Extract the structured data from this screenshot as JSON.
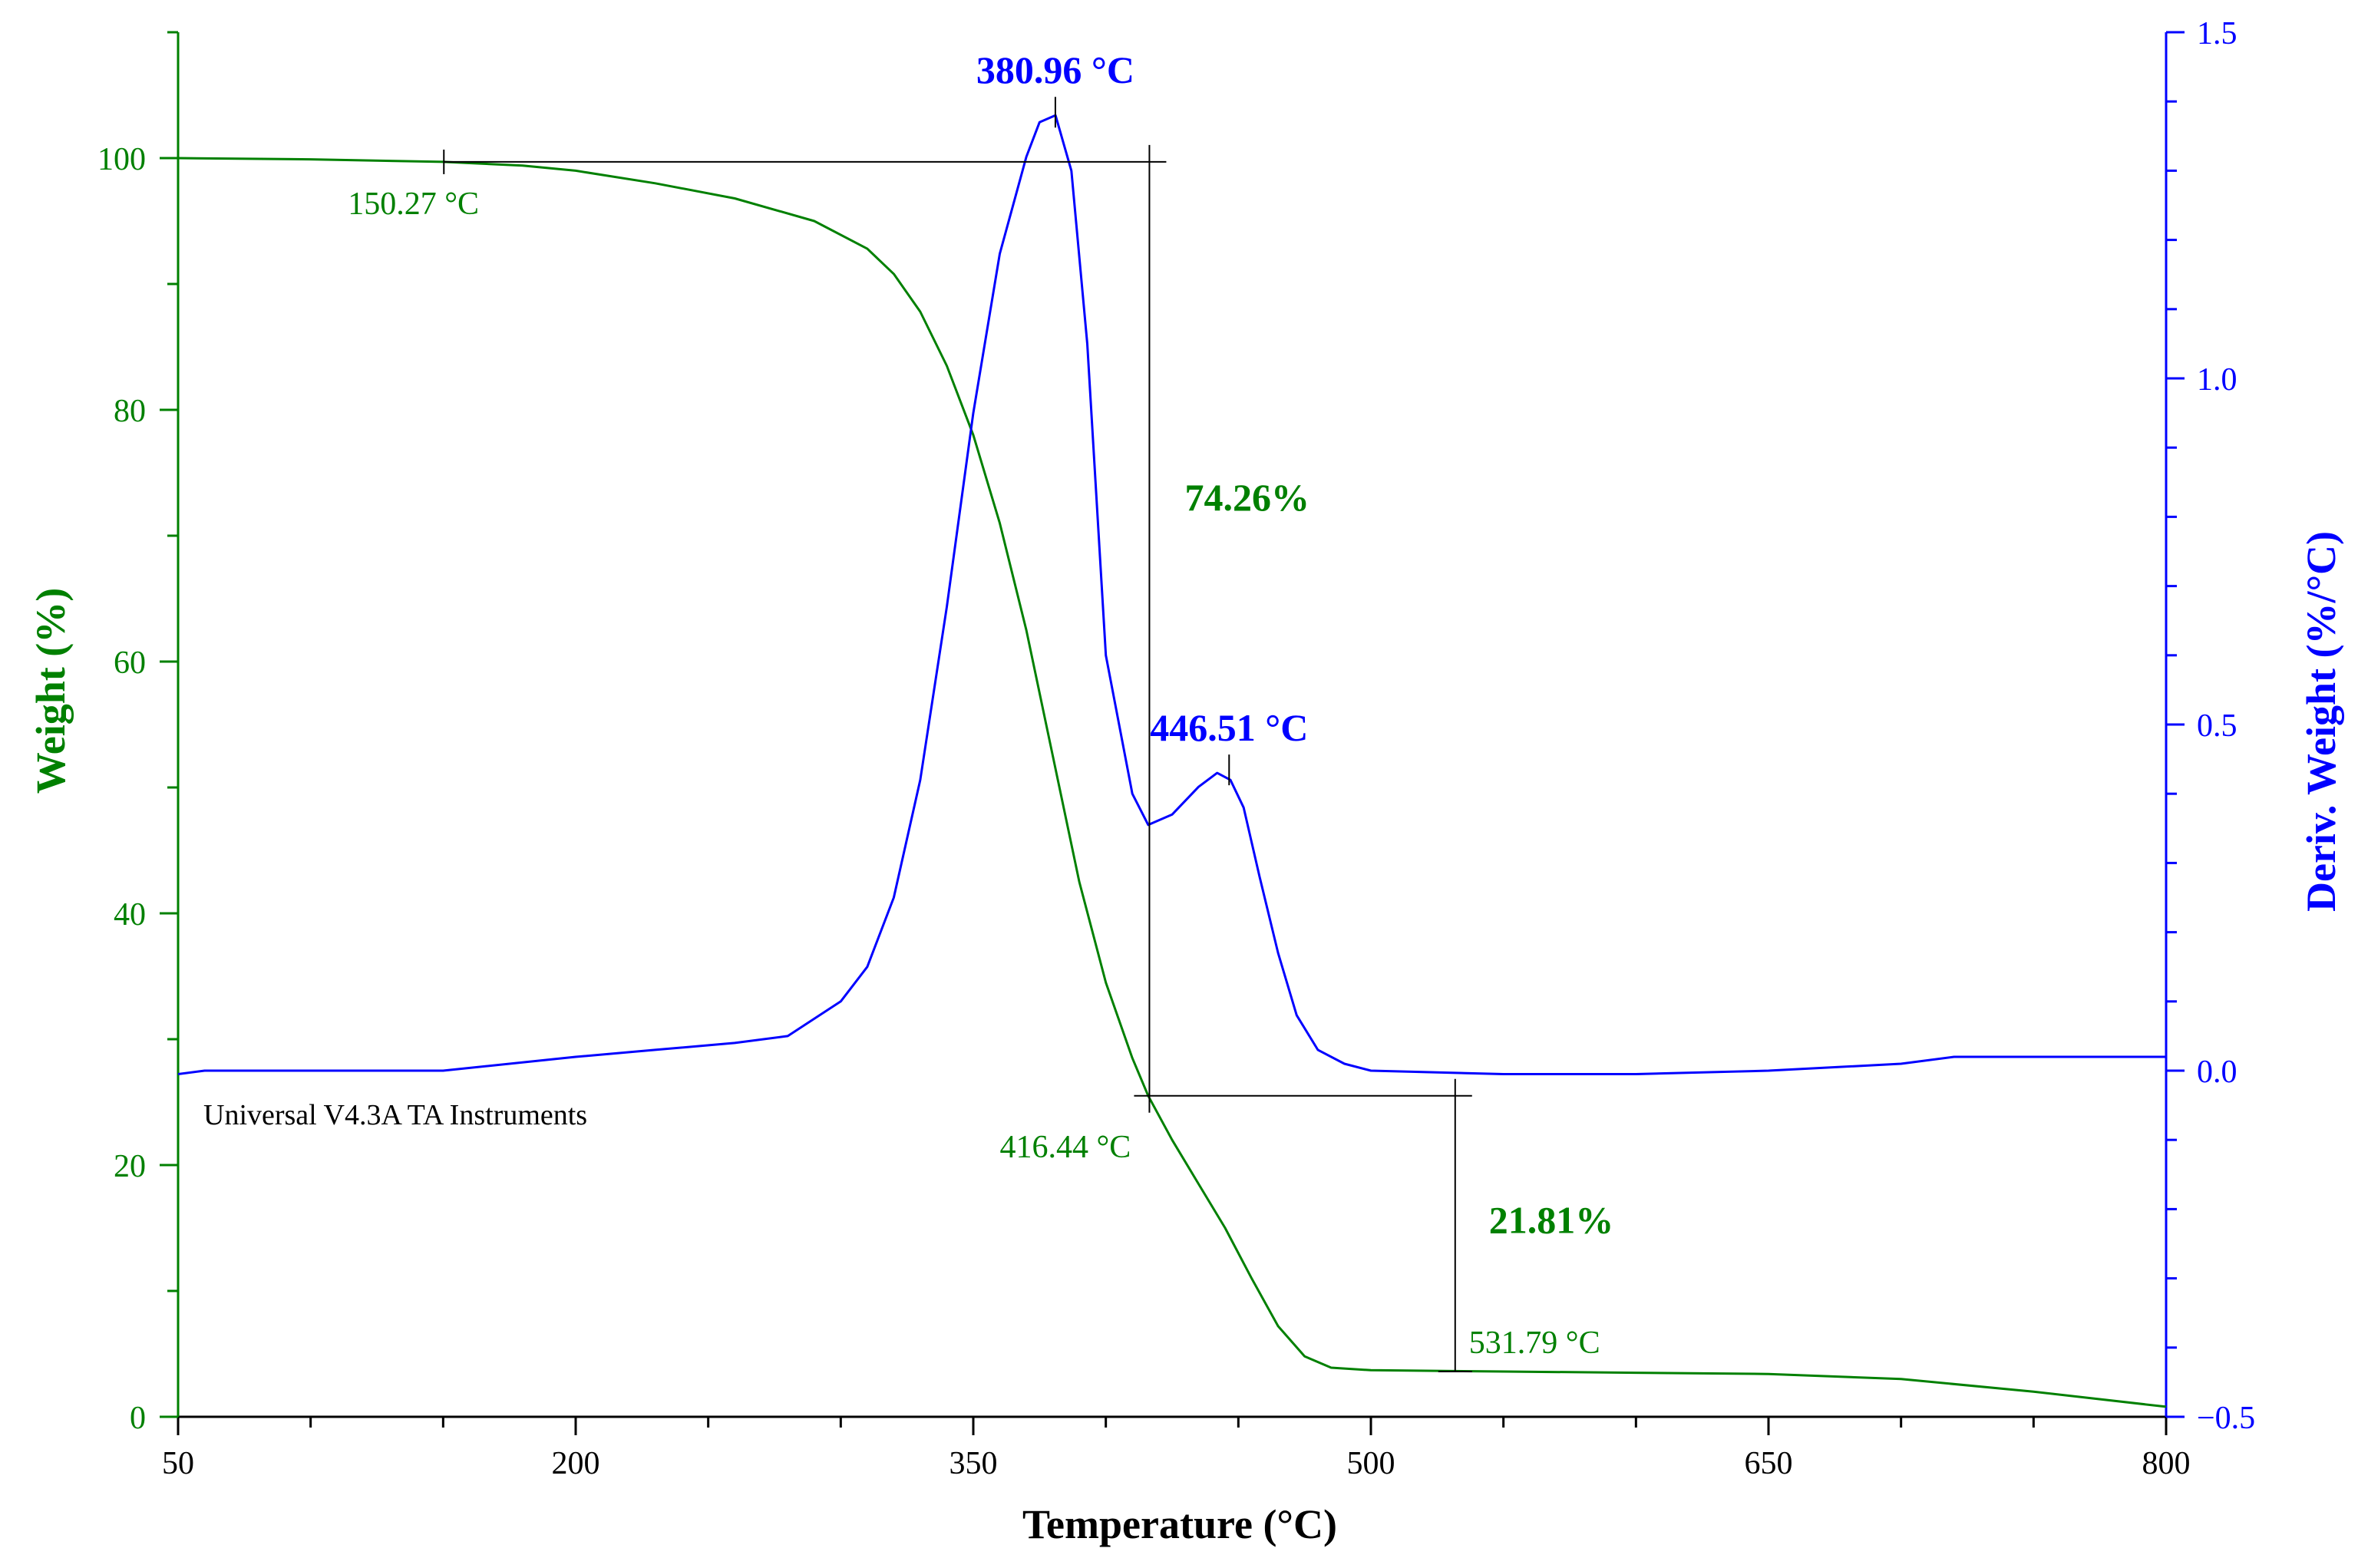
{
  "chart_data": {
    "type": "line",
    "x_axis": {
      "label": "Temperature  (°C)",
      "lim": [
        50,
        800
      ],
      "ticks": [
        50,
        200,
        350,
        500,
        650,
        800
      ],
      "minor_step": 50
    },
    "y_left": {
      "label": "Weight  (%)",
      "lim": [
        0,
        110
      ],
      "ticks": [
        0,
        20,
        40,
        60,
        80,
        100
      ],
      "minor_step": 10
    },
    "y_right": {
      "label": "Deriv.  Weight  (%/°C)",
      "lim": [
        -0.5,
        1.5
      ],
      "ticks": [
        -0.5,
        0.0,
        0.5,
        1.0,
        1.5
      ],
      "tick_labels": [
        "−0.5",
        "0.0",
        "0.5",
        "1.0",
        "1.5"
      ],
      "minor_step": 0.1
    },
    "grid": false,
    "series": [
      {
        "axis": "left",
        "color": "#008000",
        "x": [
          50,
          100,
          150,
          180,
          200,
          230,
          260,
          290,
          310,
          320,
          330,
          340,
          350,
          360,
          370,
          380,
          390,
          400,
          410,
          416,
          425,
          435,
          445,
          455,
          465,
          475,
          485,
          500,
          550,
          600,
          650,
          700,
          750,
          800
        ],
        "y": [
          100,
          99.9,
          99.7,
          99.4,
          99.0,
          98.0,
          96.8,
          95.0,
          92.8,
          90.8,
          87.8,
          83.5,
          78.0,
          71.0,
          62.5,
          52.5,
          42.5,
          34.5,
          28.5,
          25.5,
          22.0,
          18.5,
          15.0,
          11.0,
          7.2,
          4.8,
          3.9,
          3.7,
          3.6,
          3.5,
          3.4,
          3.0,
          2.0,
          0.8
        ]
      },
      {
        "axis": "right",
        "color": "#0000ff",
        "x": [
          50,
          60,
          100,
          150,
          200,
          230,
          260,
          280,
          300,
          310,
          320,
          330,
          340,
          350,
          360,
          370,
          375,
          381,
          387,
          393,
          400,
          410,
          416,
          425,
          435,
          442,
          447,
          452,
          458,
          465,
          472,
          480,
          490,
          500,
          550,
          600,
          650,
          700,
          720,
          760,
          800
        ],
        "y": [
          -0.005,
          0.0,
          0.0,
          0.0,
          0.02,
          0.03,
          0.04,
          0.05,
          0.1,
          0.15,
          0.25,
          0.42,
          0.67,
          0.95,
          1.18,
          1.32,
          1.37,
          1.38,
          1.3,
          1.05,
          0.6,
          0.4,
          0.355,
          0.37,
          0.41,
          0.43,
          0.42,
          0.38,
          0.28,
          0.17,
          0.08,
          0.03,
          0.01,
          0.0,
          -0.005,
          -0.005,
          0.0,
          0.01,
          0.02,
          0.02,
          0.02
        ]
      }
    ],
    "annotations": {
      "peaks": [
        {
          "x": 380.96,
          "y": 1.38,
          "label": "380.96 °C",
          "color": "#0000ff"
        },
        {
          "x": 446.51,
          "y": 0.43,
          "label": "446.51 °C",
          "color": "#0000ff"
        }
      ],
      "temperatures": [
        {
          "x": 150.27,
          "y": 99.7,
          "label": "150.27 °C",
          "color": "#008000"
        },
        {
          "x": 416.44,
          "y": 25.5,
          "label": "416.44 °C",
          "color": "#008000"
        },
        {
          "x": 531.79,
          "y": 3.6,
          "label": "531.79 °C",
          "color": "#008000"
        }
      ],
      "steps": [
        {
          "x": 416.44,
          "y_top": 99.7,
          "y_bottom": 25.5,
          "label": "74.26%",
          "color": "#008000"
        },
        {
          "x": 531.79,
          "y_top": 25.5,
          "y_bottom": 3.6,
          "label": "21.81%",
          "color": "#008000"
        }
      ],
      "footnote": "Universal V4.3A TA Instruments"
    }
  },
  "colors": {
    "weight": "#008000",
    "deriv": "#0000ff",
    "frame": "#000000"
  }
}
